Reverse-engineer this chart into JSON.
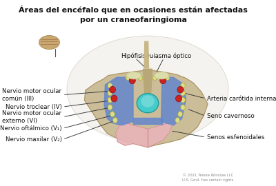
{
  "title_line1": "Áreas del encéfalo que en ocasiones están afectadas",
  "title_line2": "por un craneofaringioma",
  "title_fontsize": 9,
  "bg_color": "#ffffff",
  "copyright": "© 2021 Terese Winslow LLC\nU.S. Govt. has certain rights",
  "colors": {
    "bone_tan": "#c8b890",
    "cavernous_sinus_blue": "#6688cc",
    "pituitary_teal": "#44cccc",
    "pituitary_light": "#88dddd",
    "red_vessel": "#cc2222",
    "yellow_nerve": "#dddd88",
    "sphenoid_pink": "#e8b4b8",
    "stalk_tan": "#b8a878"
  }
}
